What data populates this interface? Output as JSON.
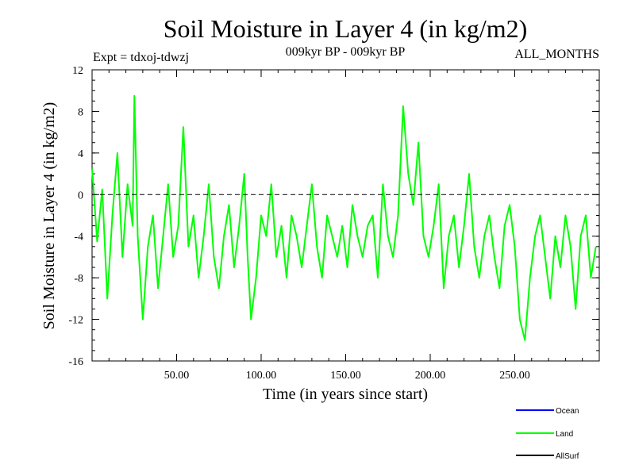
{
  "chart_data": {
    "type": "line",
    "title": "Soil Moisture in Layer 4 (in kg/m2)",
    "subtitle_left": "Expt = tdxoj-tdwzj",
    "subtitle_center": "009kyr BP - 009kyr BP",
    "subtitle_right": "ALL_MONTHS",
    "xlabel": "Time (in years since start)",
    "ylabel": "Soil Moisture in Layer 4 (in kg/m2)",
    "xlim": [
      0,
      300
    ],
    "ylim": [
      -16,
      12
    ],
    "x_ticks": [
      50,
      100,
      150,
      200,
      250
    ],
    "x_tick_labels": [
      "50.00",
      "100.00",
      "150.00",
      "200.00",
      "250.00"
    ],
    "y_ticks": [
      -16,
      -12,
      -8,
      -4,
      0,
      4,
      8,
      12
    ],
    "y_tick_labels": [
      "-16",
      "-12",
      "-8",
      "-4",
      "0",
      "4",
      "8",
      "12"
    ],
    "zero_line": 0,
    "legend": {
      "placement": "bottom-right",
      "entries": [
        {
          "name": "Ocean",
          "color": "#0000ff"
        },
        {
          "name": "Land",
          "color": "#00ff00"
        },
        {
          "name": "AllSurf",
          "color": "#000000"
        }
      ]
    },
    "series": [
      {
        "name": "Land",
        "color": "#00ff00",
        "x": [
          0,
          3,
          6,
          9,
          12,
          15,
          18,
          21,
          24,
          25,
          27,
          30,
          33,
          36,
          39,
          42,
          45,
          48,
          51,
          54,
          57,
          60,
          63,
          66,
          69,
          72,
          75,
          78,
          81,
          84,
          87,
          90,
          92,
          94,
          97,
          100,
          103,
          106,
          109,
          112,
          115,
          118,
          121,
          124,
          127,
          130,
          133,
          136,
          139,
          142,
          145,
          148,
          151,
          154,
          157,
          160,
          163,
          166,
          169,
          172,
          175,
          178,
          181,
          184,
          187,
          190,
          193,
          196,
          199,
          202,
          205,
          208,
          211,
          214,
          217,
          220,
          223,
          226,
          229,
          232,
          235,
          238,
          241,
          244,
          247,
          250,
          253,
          256,
          259,
          262,
          265,
          268,
          271,
          274,
          277,
          280,
          283,
          286,
          289,
          292,
          295,
          298
        ],
        "y": [
          2.5,
          -4.5,
          0.5,
          -10,
          -2,
          4,
          -6,
          1,
          -3,
          9.5,
          -4,
          -12,
          -5,
          -2,
          -9,
          -4,
          1,
          -6,
          -3,
          6.5,
          -5,
          -2,
          -8,
          -4,
          1,
          -6,
          -9,
          -4,
          -1,
          -7,
          -3,
          2,
          -6,
          -12,
          -8,
          -2,
          -4,
          1,
          -6,
          -3,
          -8,
          -2,
          -4,
          -7,
          -3,
          1,
          -5,
          -8,
          -2,
          -4,
          -6,
          -3,
          -7,
          -1,
          -4,
          -6,
          -3,
          -2,
          -8,
          1,
          -4,
          -6,
          -2,
          8.5,
          2,
          -1,
          5,
          -4,
          -6,
          -3,
          1,
          -9,
          -4,
          -2,
          -7,
          -3,
          2,
          -5,
          -8,
          -4,
          -2,
          -6,
          -9,
          -3,
          -1,
          -5,
          -12,
          -14,
          -8,
          -4,
          -2,
          -6,
          -10,
          -4,
          -7,
          -2,
          -5,
          -11,
          -4,
          -2,
          -8,
          -5
        ]
      }
    ]
  }
}
